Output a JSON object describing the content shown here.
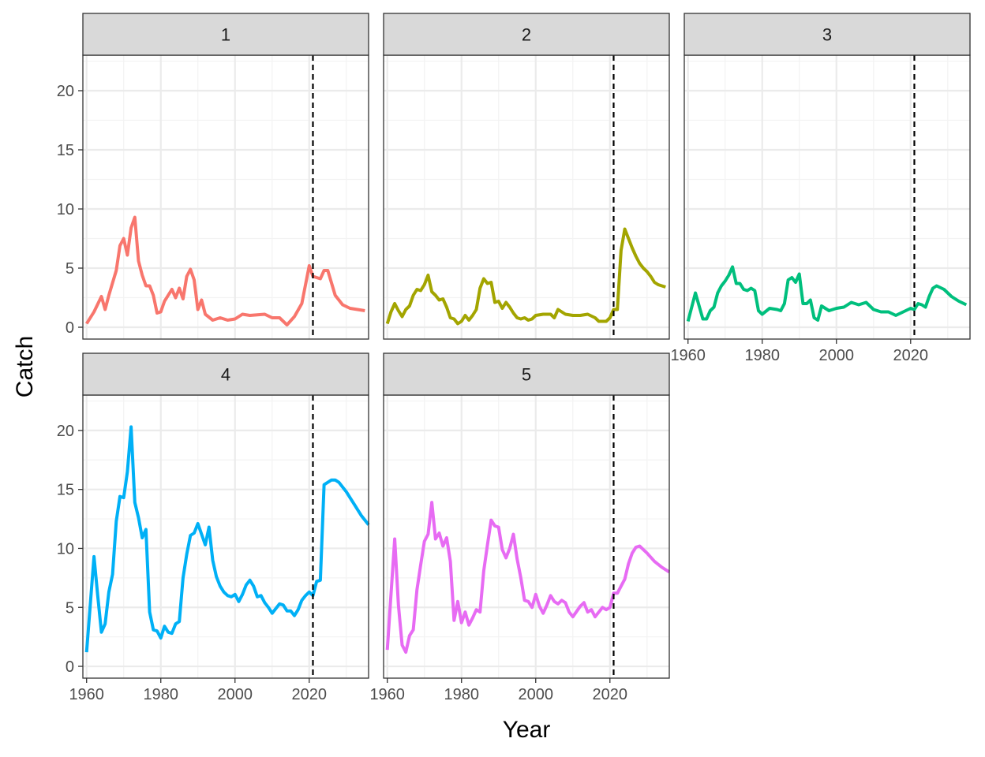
{
  "chart_data": {
    "type": "line",
    "facet_variable": "panel",
    "xlabel": "Year",
    "ylabel": "Catch",
    "xlim": [
      1959,
      2036
    ],
    "ylim": [
      -1,
      23
    ],
    "x_ticks": [
      1960,
      1980,
      2000,
      2020
    ],
    "y_ticks": [
      0,
      5,
      10,
      15,
      20
    ],
    "reference_line": {
      "x": 2021,
      "style": "dashed",
      "color": "#000000"
    },
    "grid": true,
    "legend": "none",
    "panels": [
      {
        "label": "1",
        "color": "#F8766D",
        "x": [
          1960,
          1962,
          1964,
          1965,
          1966,
          1968,
          1969,
          1970,
          1971,
          1972,
          1973,
          1974,
          1975,
          1976,
          1977,
          1978,
          1979,
          1980,
          1981,
          1982,
          1983,
          1984,
          1985,
          1986,
          1987,
          1988,
          1989,
          1990,
          1991,
          1992,
          1994,
          1996,
          1998,
          2000,
          2002,
          2004,
          2008,
          2010,
          2012,
          2014,
          2016,
          2018,
          2020,
          2021,
          2023,
          2024,
          2025,
          2027,
          2029,
          2031,
          2033,
          2035
        ],
        "y": [
          0.3,
          1.3,
          2.6,
          1.5,
          2.7,
          4.8,
          6.9,
          7.5,
          6.1,
          8.4,
          9.3,
          5.6,
          4.4,
          3.5,
          3.5,
          2.7,
          1.2,
          1.3,
          2.2,
          2.7,
          3.2,
          2.5,
          3.3,
          2.4,
          4.3,
          4.9,
          4.0,
          1.5,
          2.3,
          1.1,
          0.6,
          0.8,
          0.6,
          0.7,
          1.1,
          1.0,
          1.1,
          0.8,
          0.8,
          0.2,
          0.9,
          2.0,
          5.2,
          4.3,
          4.1,
          4.8,
          4.8,
          2.7,
          1.9,
          1.6,
          1.5,
          1.4
        ]
      },
      {
        "label": "2",
        "color": "#A3A500",
        "x": [
          1960,
          1961,
          1962,
          1963,
          1964,
          1965,
          1966,
          1967,
          1968,
          1969,
          1970,
          1971,
          1972,
          1973,
          1974,
          1975,
          1976,
          1977,
          1978,
          1979,
          1980,
          1981,
          1982,
          1983,
          1984,
          1985,
          1986,
          1987,
          1988,
          1989,
          1990,
          1991,
          1992,
          1993,
          1994,
          1995,
          1996,
          1997,
          1998,
          1999,
          2000,
          2002,
          2004,
          2005,
          2006,
          2008,
          2010,
          2012,
          2014,
          2016,
          2017,
          2019,
          2020,
          2021,
          2022,
          2023,
          2024,
          2025,
          2026,
          2027,
          2028,
          2029,
          2030,
          2031,
          2032,
          2033,
          2035
        ],
        "y": [
          0.3,
          1.3,
          2.0,
          1.4,
          0.9,
          1.5,
          1.8,
          2.7,
          3.2,
          3.1,
          3.6,
          4.4,
          3.0,
          2.7,
          2.3,
          2.4,
          1.7,
          0.8,
          0.7,
          0.3,
          0.5,
          1.0,
          0.6,
          1.0,
          1.5,
          3.3,
          4.1,
          3.7,
          3.8,
          2.1,
          2.2,
          1.6,
          2.1,
          1.7,
          1.2,
          0.8,
          0.7,
          0.8,
          0.6,
          0.7,
          1.0,
          1.1,
          1.1,
          0.8,
          1.5,
          1.1,
          1.0,
          1.0,
          1.1,
          0.8,
          0.5,
          0.5,
          0.8,
          1.5,
          1.5,
          6.5,
          8.3,
          7.5,
          6.7,
          6.0,
          5.4,
          5.0,
          4.7,
          4.3,
          3.8,
          3.6,
          3.4
        ]
      },
      {
        "label": "3",
        "color": "#00BF7D",
        "x": [
          1960,
          1962,
          1964,
          1965,
          1966,
          1967,
          1968,
          1969,
          1970,
          1971,
          1972,
          1973,
          1974,
          1975,
          1976,
          1977,
          1978,
          1979,
          1980,
          1982,
          1984,
          1985,
          1986,
          1987,
          1988,
          1989,
          1990,
          1991,
          1992,
          1993,
          1994,
          1995,
          1996,
          1998,
          2000,
          2002,
          2004,
          2006,
          2008,
          2010,
          2012,
          2014,
          2016,
          2018,
          2020,
          2021,
          2022,
          2023,
          2024,
          2025,
          2026,
          2027,
          2029,
          2031,
          2033,
          2035
        ],
        "y": [
          0.5,
          2.9,
          0.7,
          0.7,
          1.4,
          1.7,
          2.9,
          3.5,
          3.9,
          4.4,
          5.1,
          3.7,
          3.7,
          3.2,
          3.1,
          3.3,
          3.1,
          1.4,
          1.1,
          1.6,
          1.5,
          1.4,
          2.0,
          4.0,
          4.2,
          3.8,
          4.5,
          2.0,
          2.0,
          2.3,
          0.8,
          0.6,
          1.8,
          1.4,
          1.6,
          1.7,
          2.1,
          1.9,
          2.1,
          1.5,
          1.3,
          1.3,
          1.0,
          1.3,
          1.6,
          1.5,
          2.0,
          1.9,
          1.7,
          2.6,
          3.3,
          3.5,
          3.2,
          2.6,
          2.2,
          1.9
        ]
      },
      {
        "label": "4",
        "color": "#00B0F6",
        "x": [
          1960,
          1962,
          1963,
          1964,
          1965,
          1966,
          1967,
          1968,
          1969,
          1970,
          1971,
          1972,
          1973,
          1974,
          1975,
          1976,
          1977,
          1978,
          1979,
          1980,
          1981,
          1982,
          1983,
          1984,
          1985,
          1986,
          1987,
          1988,
          1989,
          1990,
          1991,
          1992,
          1993,
          1994,
          1995,
          1996,
          1997,
          1998,
          1999,
          2000,
          2001,
          2002,
          2003,
          2004,
          2005,
          2006,
          2007,
          2008,
          2009,
          2010,
          2012,
          2013,
          2014,
          2015,
          2016,
          2017,
          2018,
          2019,
          2020,
          2021,
          2022,
          2023,
          2024,
          2025,
          2026,
          2027,
          2028,
          2030,
          2032,
          2034,
          2036
        ],
        "y": [
          1.2,
          9.3,
          6.0,
          2.9,
          3.6,
          6.3,
          7.8,
          12.3,
          14.4,
          14.3,
          16.5,
          20.3,
          13.9,
          12.6,
          10.9,
          11.6,
          4.6,
          3.1,
          3.0,
          2.4,
          3.4,
          2.9,
          2.8,
          3.6,
          3.8,
          7.5,
          9.5,
          11.1,
          11.3,
          12.1,
          11.2,
          10.3,
          11.8,
          9.0,
          7.6,
          6.8,
          6.3,
          6.0,
          5.9,
          6.1,
          5.5,
          6.1,
          6.9,
          7.3,
          6.8,
          5.9,
          6.0,
          5.4,
          5.0,
          4.5,
          5.3,
          5.2,
          4.7,
          4.7,
          4.3,
          4.8,
          5.6,
          6.0,
          6.3,
          6.0,
          7.2,
          7.3,
          15.4,
          15.6,
          15.8,
          15.8,
          15.6,
          14.8,
          13.8,
          12.8,
          12.0
        ]
      },
      {
        "label": "5",
        "color": "#E76BF3",
        "x": [
          1960,
          1962,
          1963,
          1964,
          1965,
          1966,
          1967,
          1968,
          1969,
          1970,
          1971,
          1972,
          1973,
          1974,
          1975,
          1976,
          1977,
          1978,
          1979,
          1980,
          1981,
          1982,
          1983,
          1984,
          1985,
          1986,
          1987,
          1988,
          1989,
          1990,
          1991,
          1992,
          1993,
          1994,
          1995,
          1996,
          1997,
          1998,
          1999,
          2000,
          2001,
          2002,
          2003,
          2004,
          2005,
          2006,
          2007,
          2008,
          2009,
          2010,
          2012,
          2013,
          2014,
          2015,
          2016,
          2017,
          2018,
          2019,
          2020,
          2021,
          2022,
          2023,
          2024,
          2025,
          2026,
          2027,
          2028,
          2030,
          2032,
          2034,
          2036
        ],
        "y": [
          1.4,
          10.8,
          5.2,
          1.8,
          1.2,
          2.6,
          3.1,
          6.5,
          8.6,
          10.6,
          11.2,
          13.9,
          10.8,
          11.3,
          10.2,
          10.9,
          8.9,
          3.9,
          5.5,
          3.7,
          4.6,
          3.5,
          4.1,
          4.8,
          4.6,
          8.1,
          10.3,
          12.4,
          11.9,
          11.8,
          9.9,
          9.2,
          10.0,
          11.2,
          9.1,
          7.5,
          5.6,
          5.5,
          5.0,
          6.1,
          5.1,
          4.5,
          5.2,
          6.0,
          5.5,
          5.3,
          5.6,
          5.4,
          4.6,
          4.2,
          5.1,
          5.4,
          4.6,
          4.8,
          4.2,
          4.6,
          5.0,
          4.8,
          5.0,
          6.2,
          6.2,
          6.8,
          7.4,
          8.7,
          9.6,
          10.1,
          10.2,
          9.6,
          8.9,
          8.4,
          8.0
        ]
      }
    ]
  }
}
